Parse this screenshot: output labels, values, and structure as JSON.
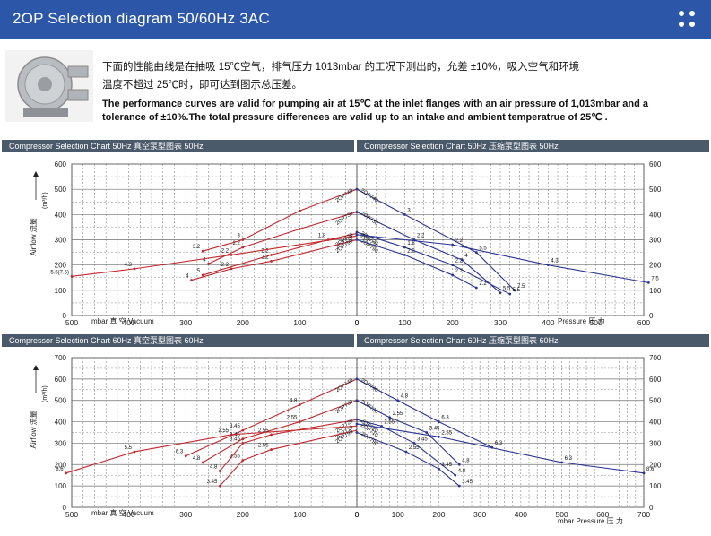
{
  "header": {
    "title": "2OP Selection diagram 50/60Hz 3AC",
    "accent": "#2c57a8",
    "menu_icon": "grid-dots-icon"
  },
  "intro": {
    "cn_line1": "下面的性能曲线是在抽吸 15℃空气，排气压力 1013mbar 的工况下测出的，允差 ±10%，吸入空气和环境",
    "cn_line2": "温度不超过 25℃时，即可达到图示总压差。",
    "en_line1": "The performance curves are valid for pumping air at 15℃ at the inlet flanges with an air pressure of 1,013mbar and a",
    "en_line2": "tolerance of ±10%.The total pressure differences are valid up to an intake and ambient temperatrue of 25℃ ."
  },
  "colors": {
    "vacuum": "#c2272d",
    "pressure": "#2b3592",
    "grid": "#6f6f6f",
    "bar": "#4b5a6b"
  },
  "chart_data": [
    {
      "type": "line",
      "title": "Compressor Selection Chart 50Hz 真空泵型图表 50Hz",
      "xlabel": "mbar  真 空 Vacuum",
      "ylabel": "Airflow 流量",
      "yunit": "(m³/h)",
      "xlim": [
        500,
        0
      ],
      "ylim": [
        0,
        600
      ],
      "xticks": [
        500,
        400,
        300,
        200,
        100,
        0
      ],
      "yticks": [
        0,
        100,
        200,
        300,
        400,
        500,
        600
      ],
      "series": [
        {
          "name": "2OP740",
          "points": [
            [
              0,
              500
            ],
            [
              100,
              415
            ],
            [
              200,
              300
            ],
            [
              270,
              255
            ]
          ],
          "labels": [
            "",
            "",
            "3",
            "3.2"
          ]
        },
        {
          "name": "2OP730",
          "points": [
            [
              0,
              410
            ],
            [
              100,
              343
            ],
            [
              200,
              270
            ],
            [
              260,
              205
            ]
          ],
          "labels": [
            "",
            "",
            "2.2",
            "4"
          ]
        },
        {
          "name": "2OP720",
          "points": [
            [
              0,
              325
            ],
            [
              50,
              300
            ],
            [
              150,
              240
            ],
            [
              270,
              160
            ]
          ],
          "labels": [
            "",
            "1.8",
            "2.2",
            "5"
          ]
        },
        {
          "name": "2OP710",
          "points": [
            [
              0,
              315
            ],
            [
              220,
              240
            ],
            [
              390,
              185
            ],
            [
              500,
              155
            ]
          ],
          "labels": [
            "",
            "2.2",
            "4.3",
            "5.5(7.5)"
          ]
        },
        {
          "name": "2OP790",
          "points": [
            [
              0,
              300
            ],
            [
              150,
              215
            ],
            [
              220,
              185
            ],
            [
              290,
              140
            ]
          ],
          "labels": [
            "",
            "2.2",
            "2.2",
            "4"
          ]
        }
      ]
    },
    {
      "type": "line",
      "title": "Compressor Selection Chart 50Hz 压缩泵型图表 50Hz",
      "xlabel": "Pressure 压 力",
      "ylabel": "",
      "xlim": [
        0,
        600
      ],
      "ylim": [
        0,
        600
      ],
      "xticks": [
        0,
        100,
        200,
        300,
        400,
        500,
        600
      ],
      "yticks": [
        0,
        100,
        200,
        300,
        400,
        500,
        600
      ],
      "series": [
        {
          "name": "2OP740",
          "points": [
            [
              0,
              500
            ],
            [
              100,
              400
            ],
            [
              250,
              250
            ],
            [
              330,
              100
            ]
          ],
          "labels": [
            "",
            "3",
            "5.5",
            "7.5"
          ]
        },
        {
          "name": "2OP730",
          "points": [
            [
              0,
              410
            ],
            [
              120,
              300
            ],
            [
              220,
              220
            ],
            [
              300,
              90
            ]
          ],
          "labels": [
            "",
            "2.2",
            "4",
            "5.5"
          ]
        },
        {
          "name": "2OP720",
          "points": [
            [
              0,
              330
            ],
            [
              100,
              270
            ],
            [
              200,
              200
            ],
            [
              320,
              85
            ]
          ],
          "labels": [
            "",
            "1.8",
            "2.2",
            "5.5"
          ]
        },
        {
          "name": "2OP710",
          "points": [
            [
              0,
              320
            ],
            [
              200,
              280
            ],
            [
              400,
              200
            ],
            [
              610,
              130
            ]
          ],
          "labels": [
            "",
            "2.2",
            "4.3",
            "7.5"
          ]
        },
        {
          "name": "2OP790",
          "points": [
            [
              0,
              300
            ],
            [
              100,
              240
            ],
            [
              200,
              160
            ],
            [
              250,
              110
            ]
          ],
          "labels": [
            "",
            "2.2",
            "2.2",
            "2.2"
          ]
        }
      ]
    },
    {
      "type": "line",
      "title": "Compressor Selection Chart 60Hz 真空泵型图表 60Hz",
      "xlabel": "mbar  真 空 Vacuum",
      "ylabel": "Airflow 流量",
      "yunit": "(m³/h)",
      "xlim": [
        500,
        0
      ],
      "ylim": [
        0,
        700
      ],
      "xticks": [
        500,
        400,
        300,
        200,
        100,
        0
      ],
      "yticks": [
        0,
        100,
        200,
        300,
        400,
        500,
        600,
        700
      ],
      "series": [
        {
          "name": "2OP740",
          "points": [
            [
              0,
              600
            ],
            [
              100,
              480
            ],
            [
              200,
              360
            ],
            [
              300,
              240
            ]
          ],
          "labels": [
            "",
            "4.8",
            "3.45",
            "6.3"
          ]
        },
        {
          "name": "2OP730",
          "points": [
            [
              0,
              500
            ],
            [
              100,
              400
            ],
            [
              200,
              320
            ],
            [
              270,
              210
            ]
          ],
          "labels": [
            "",
            "2.55",
            "3.45",
            "4.8"
          ]
        },
        {
          "name": "2OP720",
          "points": [
            [
              0,
              410
            ],
            [
              150,
              340
            ],
            [
              200,
              300
            ],
            [
              240,
              170
            ]
          ],
          "labels": [
            "",
            "2.55",
            "3.45",
            "4.8"
          ]
        },
        {
          "name": "2OP710",
          "points": [
            [
              0,
              380
            ],
            [
              220,
              340
            ],
            [
              390,
              260
            ],
            [
              510,
              160
            ]
          ],
          "labels": [
            "",
            "2.55",
            "5.5",
            "8.6"
          ]
        },
        {
          "name": "2OP790",
          "points": [
            [
              0,
              360
            ],
            [
              150,
              270
            ],
            [
              200,
              220
            ],
            [
              240,
              100
            ]
          ],
          "labels": [
            "",
            "2.55",
            "2.55",
            "3.45"
          ]
        }
      ]
    },
    {
      "type": "line",
      "title": "Compressor Selection Chart 60Hz 压缩泵型图表 60Hz",
      "xlabel": "mbar  Pressure 压 力",
      "ylabel": "",
      "xlim": [
        0,
        700
      ],
      "ylim": [
        0,
        700
      ],
      "xticks": [
        0,
        100,
        200,
        300,
        400,
        500,
        600,
        700
      ],
      "yticks": [
        0,
        100,
        200,
        300,
        400,
        500,
        600,
        700
      ],
      "series": [
        {
          "name": "2OP740",
          "points": [
            [
              0,
              600
            ],
            [
              100,
              500
            ],
            [
              200,
              400
            ],
            [
              330,
              280
            ]
          ],
          "labels": [
            "",
            "4.8",
            "6.3",
            "6.3"
          ]
        },
        {
          "name": "2OP730",
          "points": [
            [
              0,
              500
            ],
            [
              80,
              420
            ],
            [
              170,
              350
            ],
            [
              250,
              200
            ]
          ],
          "labels": [
            "",
            "2.55",
            "3.45",
            "4.8"
          ]
        },
        {
          "name": "2OP720",
          "points": [
            [
              0,
              410
            ],
            [
              60,
              380
            ],
            [
              140,
              300
            ],
            [
              240,
              150
            ]
          ],
          "labels": [
            "",
            "2.55",
            "3.45",
            "4.8"
          ]
        },
        {
          "name": "2OP710",
          "points": [
            [
              0,
              390
            ],
            [
              200,
              330
            ],
            [
              500,
              210
            ],
            [
              700,
              160
            ]
          ],
          "labels": [
            "",
            "2.55",
            "6.3",
            "8.6"
          ]
        },
        {
          "name": "2OP790",
          "points": [
            [
              0,
              350
            ],
            [
              120,
              260
            ],
            [
              200,
              180
            ],
            [
              250,
              100
            ]
          ],
          "labels": [
            "",
            "2.55",
            "3.45",
            "3.45"
          ]
        }
      ]
    }
  ]
}
